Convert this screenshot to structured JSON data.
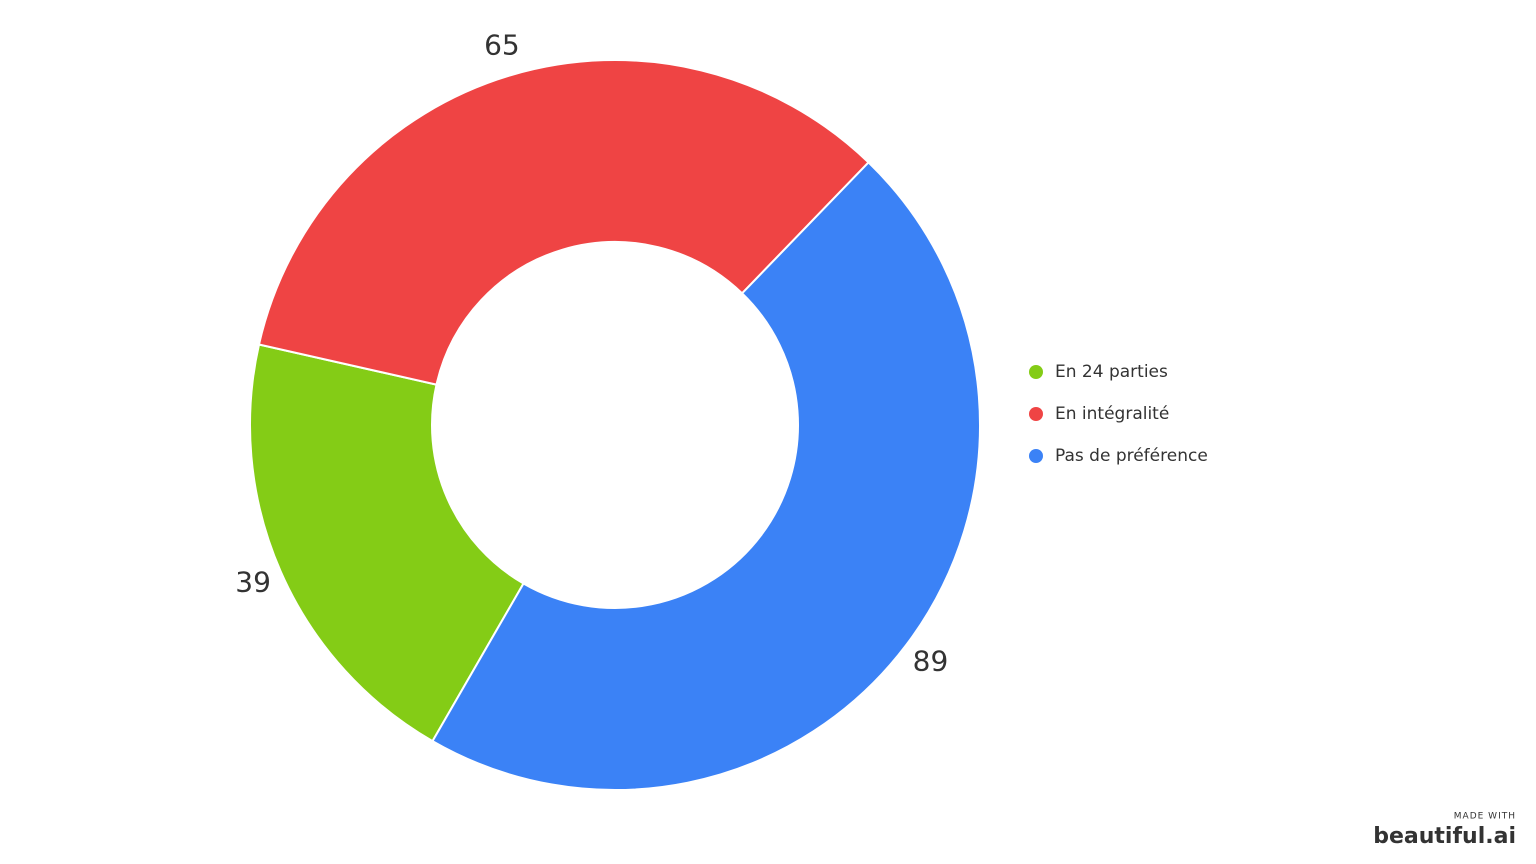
{
  "chart_data": {
    "type": "donut",
    "categories": [
      "En 24 parties",
      "En intégralité",
      "Pas de préférence"
    ],
    "values": [
      39,
      65,
      89
    ],
    "colors": [
      "#84cc16",
      "#ef4444",
      "#3b82f6"
    ],
    "legend": "right"
  },
  "watermark": {
    "caption": "MADE WITH",
    "brand": "beautiful.ai"
  }
}
